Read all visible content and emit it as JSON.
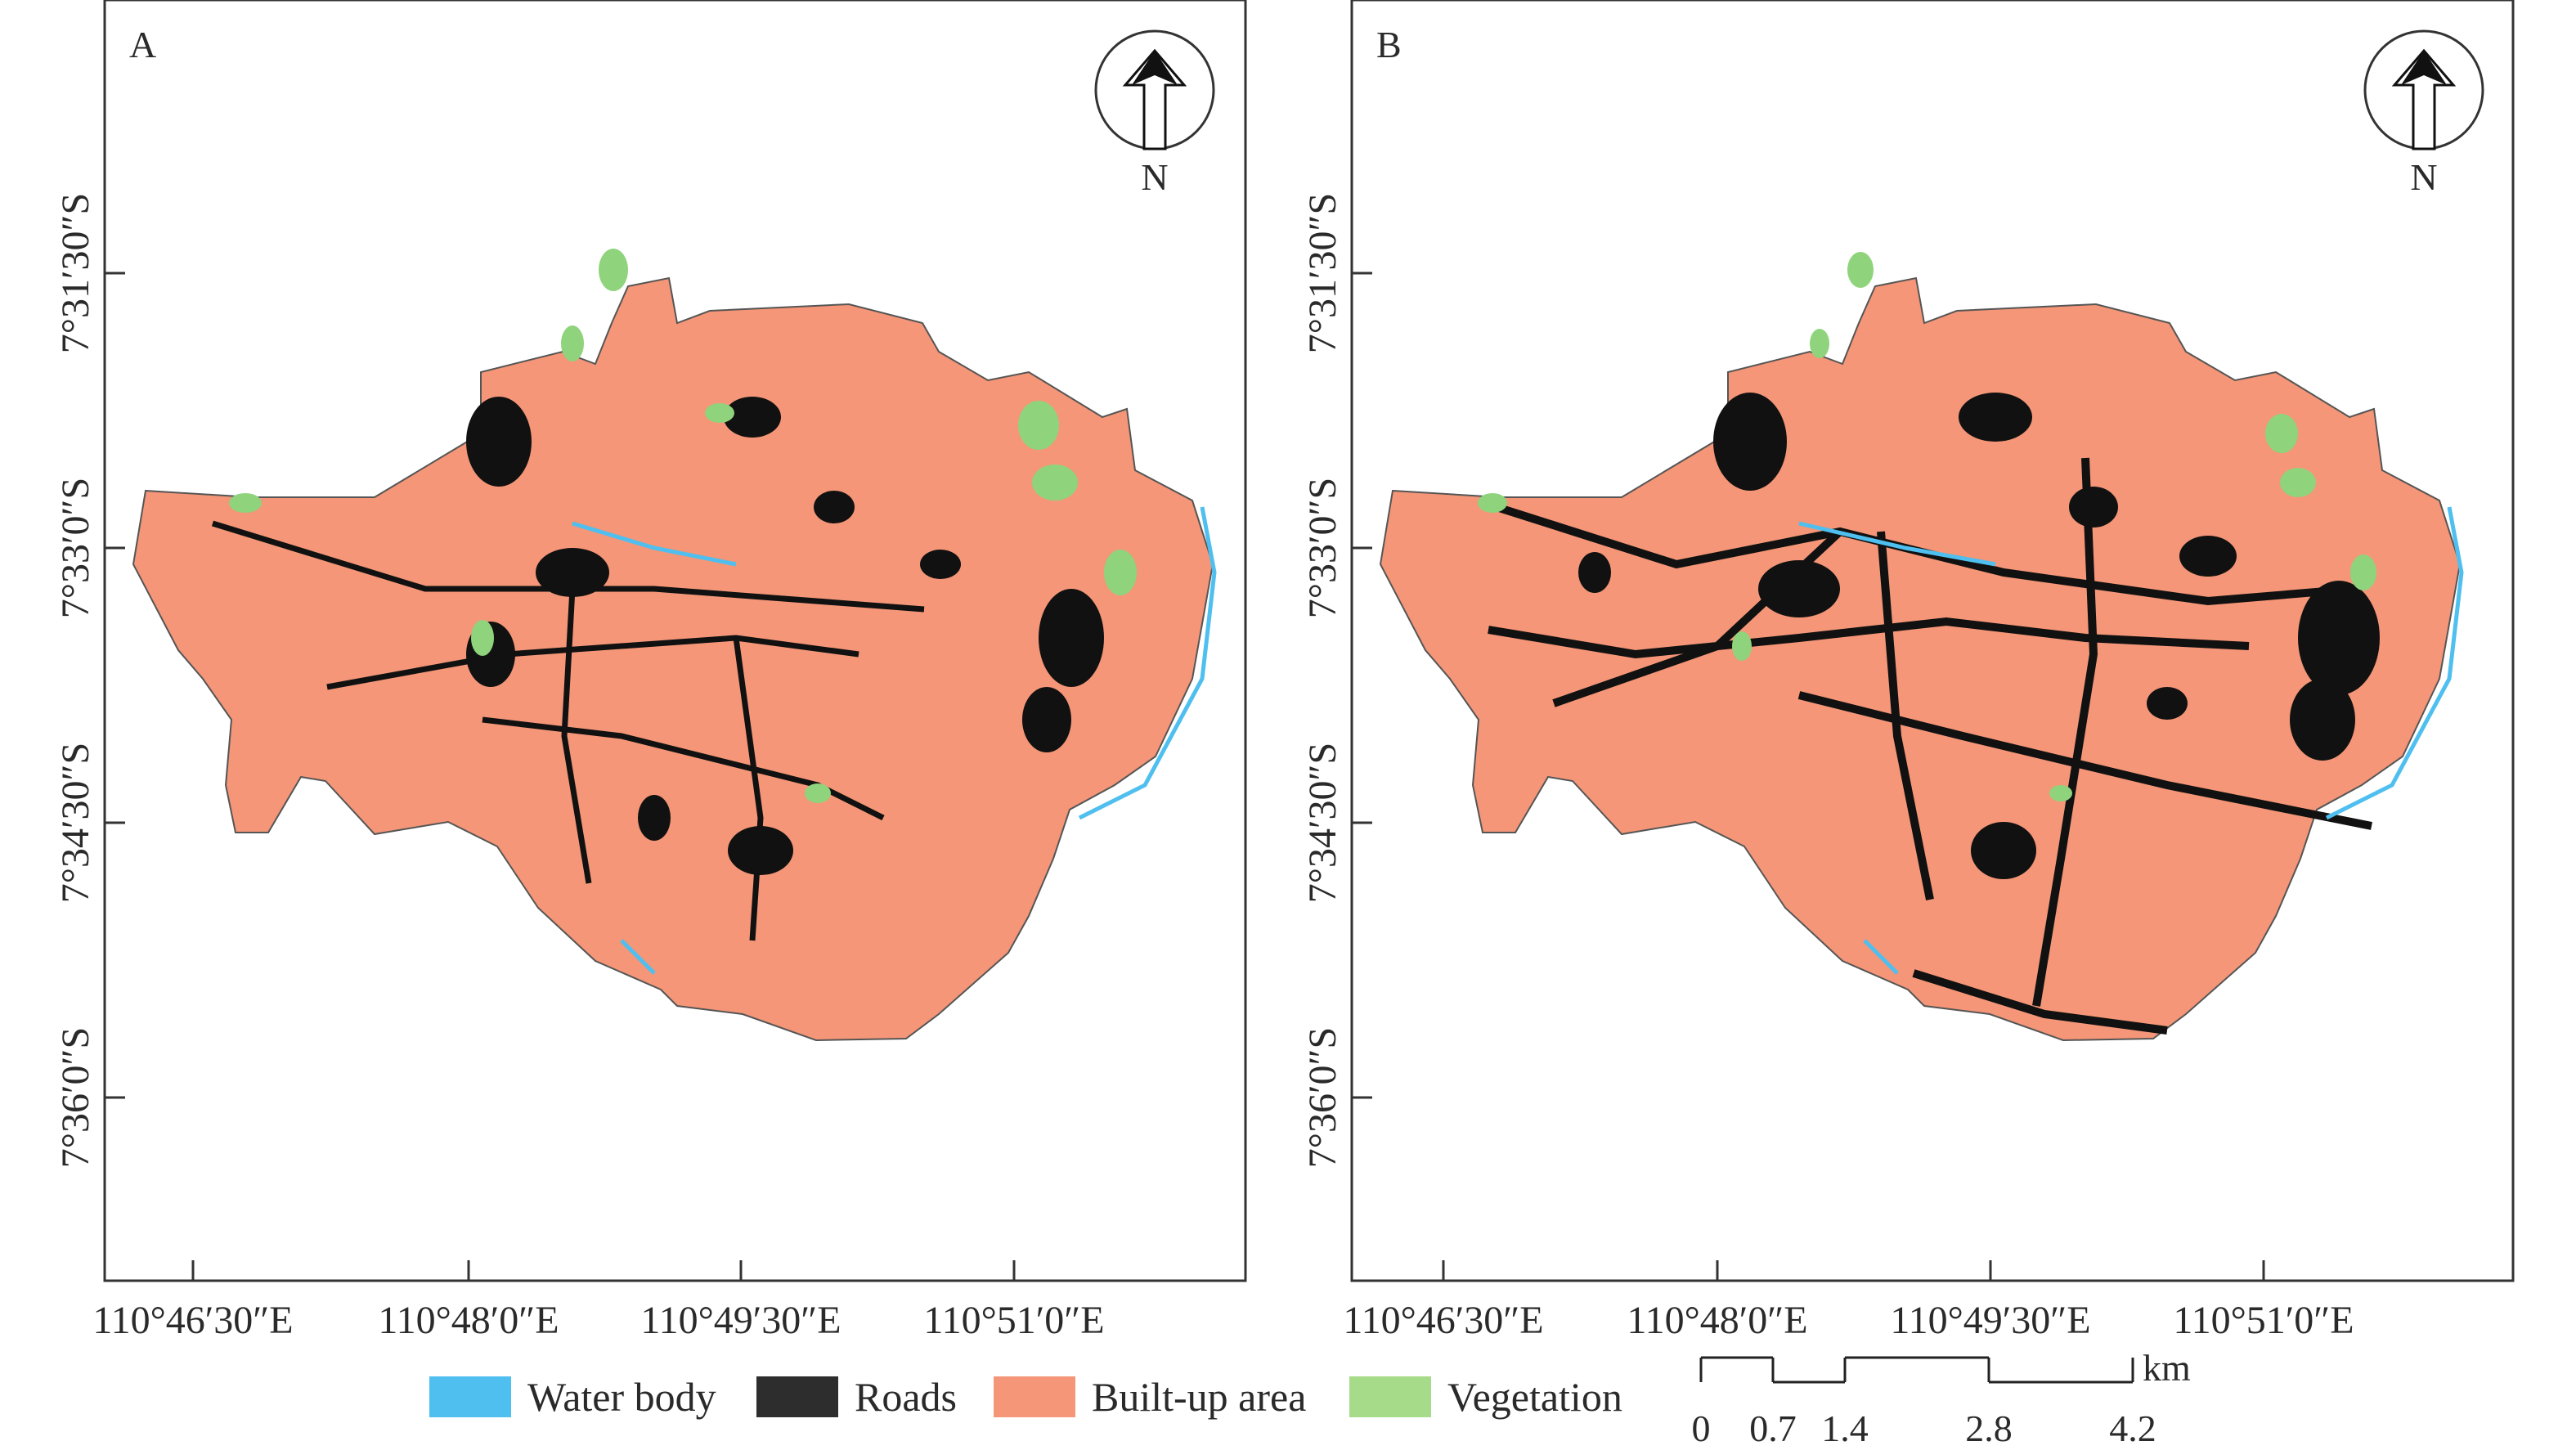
{
  "panels": [
    {
      "id": "A",
      "label": "A",
      "north_label": "N",
      "x_ticks": [
        "110°46′30″E",
        "110°48′0″E",
        "110°49′30″E",
        "110°51′0″E"
      ],
      "y_ticks": [
        "7°31′30″S",
        "7°33′0″S",
        "7°34′30″S",
        "7°36′0″S"
      ]
    },
    {
      "id": "B",
      "label": "B",
      "north_label": "N",
      "x_ticks": [
        "110°46′30″E",
        "110°48′0″E",
        "110°49′30″E",
        "110°51′0″E"
      ],
      "y_ticks": [
        "7°31′30″S",
        "7°33′0″S",
        "7°34′30″S",
        "7°36′0″S"
      ]
    }
  ],
  "legend": [
    {
      "label": "Water body",
      "color": "#4fbfef"
    },
    {
      "label": "Roads",
      "color": "#2d2d2d"
    },
    {
      "label": "Built-up area",
      "color": "#f49677"
    },
    {
      "label": "Vegetation",
      "color": "#a6db89"
    }
  ],
  "scale_bar": {
    "unit": "km",
    "labels": [
      "0",
      "0.7",
      "1.4",
      "2.8",
      "4.2"
    ],
    "values": [
      0,
      0.7,
      1.4,
      2.8,
      4.2
    ]
  },
  "colors": {
    "builtup": "#f49677",
    "roads": "#111111",
    "vegetation": "#8fd47c",
    "water": "#4fbfef",
    "frame": "#333333"
  }
}
